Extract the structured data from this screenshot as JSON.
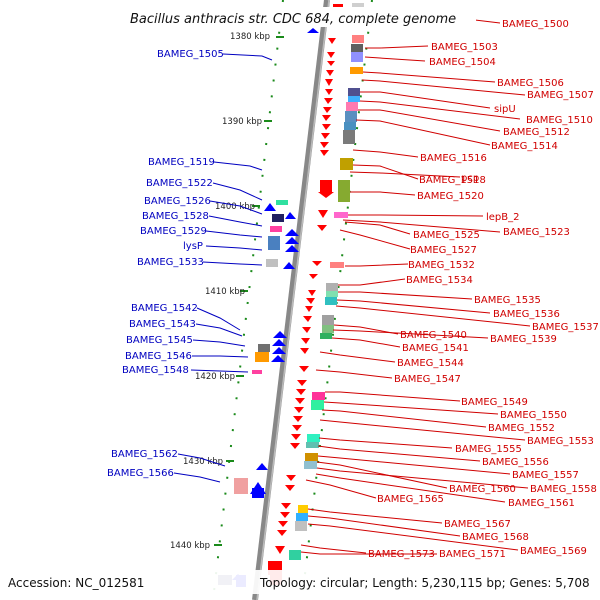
{
  "title": "Bacillus anthracis str. CDC 684, complete genome",
  "footer": {
    "accession": "Accession: NC_012581",
    "summary": "Topology: circular; Length: 5,230,115 bp; Genes: 5,708"
  },
  "ticks": [
    "1380 kbp",
    "1390 kbp",
    "1400 kbp",
    "1410 kbp",
    "1420 kbp",
    "1430 kbp",
    "1440 kbp"
  ],
  "right_labels": [
    "BAMEG_1500",
    "BAMEG_1503",
    "BAMEG_1504",
    "BAMEG_1506",
    "BAMEG_1507",
    "sipU",
    "BAMEG_1510",
    "BAMEG_1512",
    "BAMEG_1514",
    "BAMEG_1516",
    "BAMEG_1518",
    "pcp",
    "BAMEG_1520",
    "lepB_2",
    "BAMEG_1525",
    "BAMEG_1523",
    "BAMEG_1527",
    "BAMEG_1532",
    "BAMEG_1534",
    "BAMEG_1535",
    "BAMEG_1536",
    "BAMEG_1537",
    "BAMEG_1540",
    "BAMEG_1539",
    "BAMEG_1541",
    "BAMEG_1544",
    "BAMEG_1547",
    "BAMEG_1549",
    "BAMEG_1550",
    "BAMEG_1552",
    "BAMEG_1553",
    "BAMEG_1555",
    "BAMEG_1556",
    "BAMEG_1557",
    "BAMEG_1560",
    "BAMEG_1558",
    "BAMEG_1561",
    "BAMEG_1565",
    "BAMEG_1567",
    "BAMEG_1568",
    "BAMEG_1569",
    "BAMEG_1573",
    "BAMEG_1571"
  ],
  "left_labels": [
    "BAMEG_1505",
    "BAMEG_1519",
    "BAMEG_1522",
    "BAMEG_1526",
    "BAMEG_1528",
    "BAMEG_1529",
    "lysP",
    "BAMEG_1533",
    "BAMEG_1542",
    "BAMEG_1543",
    "BAMEG_1545",
    "BAMEG_1546",
    "BAMEG_1548",
    "BAMEG_1562",
    "BAMEG_1566"
  ],
  "colors": {
    "reverse_strand": "#ff0000",
    "forward_strand": "#0000ff",
    "backbone": "#888888",
    "tick_marks": "#22aa22"
  }
}
